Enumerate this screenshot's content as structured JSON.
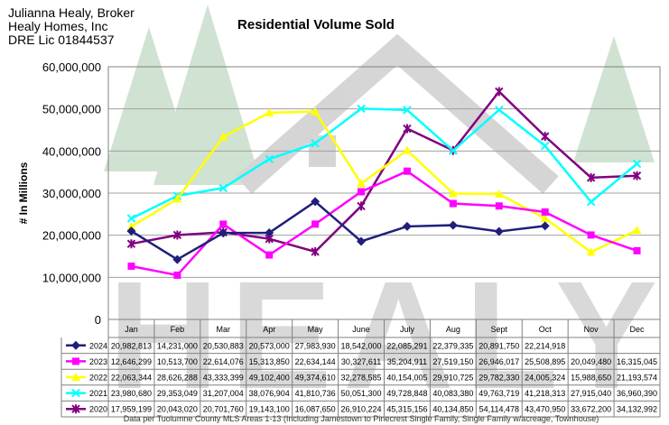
{
  "header": {
    "line1": "Julianna Healy, Broker",
    "line2": "Healy Homes, Inc",
    "line3": "DRE Lic 01844537"
  },
  "watermark": {
    "text": "HEALY"
  },
  "footer": {
    "note": "Data per Tuolumne County MLS Areas 1-13 (Including Jamestown to Pinecrest Single Family, Single Family w/acreage, Townhouse)"
  },
  "chart_data": {
    "type": "line",
    "title": "Residential Volume Sold",
    "ylabel": "# In Millions",
    "xlabel": "",
    "ylim": [
      0,
      60000000
    ],
    "yticks": [
      0,
      10000000,
      20000000,
      30000000,
      40000000,
      50000000,
      60000000
    ],
    "ytick_labels": [
      "0",
      "10,000,000",
      "20,000,000",
      "30,000,000",
      "40,000,000",
      "50,000,000",
      "60,000,000"
    ],
    "grid": true,
    "legend": "data-table",
    "categories": [
      "Jan",
      "Feb",
      "Mar",
      "Apr",
      "May",
      "June",
      "July",
      "Aug",
      "Sept",
      "Oct",
      "Nov",
      "Dec"
    ],
    "series": [
      {
        "name": "2024",
        "color": "#1f1f7a",
        "values": [
          20982813,
          14231000,
          20530883,
          20573000,
          27983930,
          18542000,
          22085291,
          22379335,
          20891750,
          22214918,
          null,
          null
        ],
        "labels": [
          "20,982,813",
          "14,231,000",
          "20,530,883",
          "20,573,000",
          "27,983,930",
          "18,542,000",
          "22,085,291",
          "22,379,335",
          "20,891,750",
          "22,214,918",
          "",
          ""
        ]
      },
      {
        "name": "2023",
        "color": "#ff00ff",
        "values": [
          12646299,
          10513700,
          22614076,
          15313850,
          22634144,
          30327611,
          35204911,
          27519150,
          26946017,
          25508895,
          20049480,
          16315045
        ],
        "labels": [
          "12,646,299",
          "10,513,700",
          "22,614,076",
          "15,313,850",
          "22,634,144",
          "30,327,611",
          "35,204,911",
          "27,519,150",
          "26,946,017",
          "25,508,895",
          "20,049,480",
          "16,315,045"
        ]
      },
      {
        "name": "2022",
        "color": "#ffff00",
        "values": [
          22063344,
          28626288,
          43333399,
          49102400,
          49374610,
          32278585,
          40154005,
          29910725,
          29782330,
          24005324,
          15988650,
          21193574
        ],
        "labels": [
          "22,063,344",
          "28,626,288",
          "43,333,399",
          "49,102,400",
          "49,374,610",
          "32,278,585",
          "40,154,005",
          "29,910,725",
          "29,782,330",
          "24,005,324",
          "15,988,650",
          "21,193,574"
        ]
      },
      {
        "name": "2021",
        "color": "#00ffff",
        "values": [
          23980680,
          29353049,
          31207004,
          38076904,
          41810736,
          50051300,
          49728848,
          40083380,
          49763719,
          41218313,
          27915040,
          36960390
        ],
        "labels": [
          "23,980,680",
          "29,353,049",
          "31,207,004",
          "38,076,904",
          "41,810,736",
          "50,051,300",
          "49,728,848",
          "40,083,380",
          "49,763,719",
          "41,218,313",
          "27,915,040",
          "36,960,390"
        ]
      },
      {
        "name": "2020",
        "color": "#800080",
        "values": [
          17959199,
          20043020,
          20701760,
          19143100,
          16087650,
          26910224,
          45315156,
          40134850,
          54114478,
          43470950,
          33672200,
          34132992
        ],
        "labels": [
          "17,959,199",
          "20,043,020",
          "20,701,760",
          "19,143,100",
          "16,087,650",
          "26,910,224",
          "45,315,156",
          "40,134,850",
          "54,114,478",
          "43,470,950",
          "33,672,200",
          "34,132,992"
        ]
      }
    ]
  }
}
